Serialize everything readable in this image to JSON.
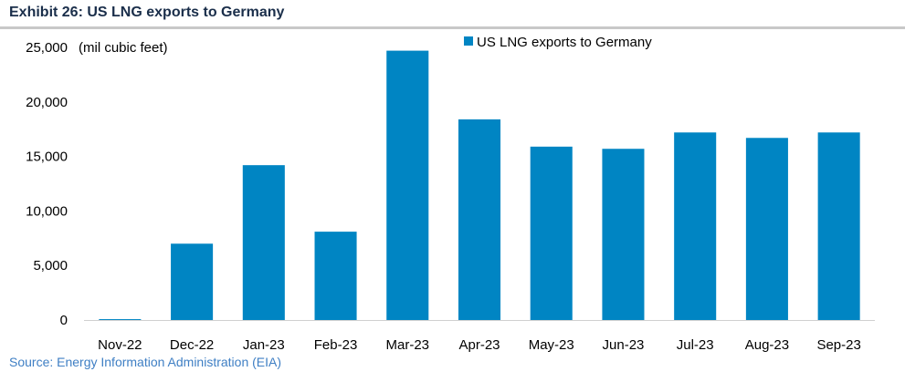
{
  "header": {
    "title": "Exhibit 26: US LNG exports to Germany"
  },
  "footer": {
    "source": "Source: Energy Information Administration (EIA)"
  },
  "chart_data": {
    "type": "bar",
    "title": "Exhibit 26: US LNG exports to Germany",
    "categories": [
      "Nov-22",
      "Dec-22",
      "Jan-23",
      "Feb-23",
      "Mar-23",
      "Apr-23",
      "May-23",
      "Jun-23",
      "Jul-23",
      "Aug-23",
      "Sep-23"
    ],
    "series": [
      {
        "name": "US LNG exports to Germany",
        "color": "#0085c3",
        "values": [
          80,
          7000,
          14200,
          8100,
          24700,
          18400,
          15900,
          15700,
          17200,
          16700,
          17200
        ]
      }
    ],
    "unit_label": "(mil cubic feet)",
    "xlabel": "",
    "ylabel": "",
    "ylim": [
      0,
      25000
    ],
    "yticks": [
      0,
      5000,
      10000,
      15000,
      20000,
      25000
    ],
    "ytick_labels": [
      "0",
      "5,000",
      "10,000",
      "15,000",
      "20,000",
      "25,000"
    ],
    "grid": false,
    "legend_position": "top"
  }
}
